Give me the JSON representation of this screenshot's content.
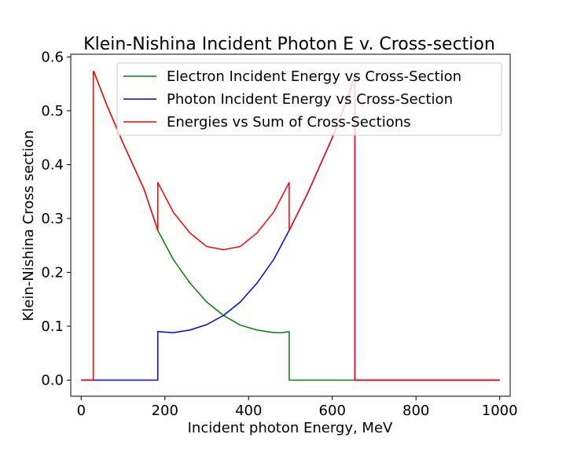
{
  "chart_data": {
    "type": "line",
    "title": "Klein-Nishina Incident Photon E v. Cross-section",
    "xlabel": "Incident photon Energy, MeV",
    "ylabel": "Klein-Nishina Cross section",
    "xlim": [
      -25,
      1025
    ],
    "ylim": [
      -0.03,
      0.605
    ],
    "xticks": [
      0,
      200,
      400,
      600,
      800,
      1000
    ],
    "yticks": [
      0.0,
      0.1,
      0.2,
      0.3,
      0.4,
      0.5,
      0.6
    ],
    "xtick_labels": [
      "0",
      "200",
      "400",
      "600",
      "800",
      "1000"
    ],
    "ytick_labels": [
      "0.0",
      "0.1",
      "0.2",
      "0.3",
      "0.4",
      "0.5",
      "0.6"
    ],
    "grid": false,
    "legend_position": "top-right",
    "series": [
      {
        "name": "Electron Incident Energy vs Cross-Section",
        "color": "#008000",
        "x": [
          0,
          29,
          29,
          30,
          60,
          100,
          150,
          183,
          183,
          220,
          260,
          300,
          340,
          380,
          420,
          460,
          480,
          497,
          497,
          1000
        ],
        "y": [
          0,
          0,
          0.573,
          0.573,
          0.513,
          0.44,
          0.355,
          0.278,
          0.278,
          0.224,
          0.18,
          0.145,
          0.12,
          0.102,
          0.093,
          0.088,
          0.088,
          0.09,
          0,
          0
        ]
      },
      {
        "name": "Photon Incident Energy vs Cross-Section",
        "color": "#0000ff",
        "x": [
          0,
          183,
          183,
          220,
          260,
          300,
          340,
          380,
          420,
          460,
          497,
          540,
          600,
          640,
          654,
          654,
          1000
        ],
        "y": [
          0,
          0,
          0.09,
          0.088,
          0.093,
          0.103,
          0.12,
          0.145,
          0.18,
          0.224,
          0.278,
          0.345,
          0.45,
          0.53,
          0.57,
          0,
          0
        ]
      },
      {
        "name": "Energies vs Sum of Cross-Sections",
        "color": "#ff0000",
        "x": [
          0,
          29,
          29,
          30,
          60,
          100,
          150,
          183,
          183,
          220,
          260,
          300,
          340,
          380,
          420,
          460,
          497,
          497,
          540,
          600,
          640,
          654,
          654,
          1000
        ],
        "y": [
          0,
          0,
          0.573,
          0.573,
          0.513,
          0.44,
          0.355,
          0.278,
          0.367,
          0.312,
          0.273,
          0.248,
          0.242,
          0.248,
          0.273,
          0.312,
          0.367,
          0.278,
          0.345,
          0.45,
          0.53,
          0.57,
          0,
          0
        ]
      }
    ]
  }
}
